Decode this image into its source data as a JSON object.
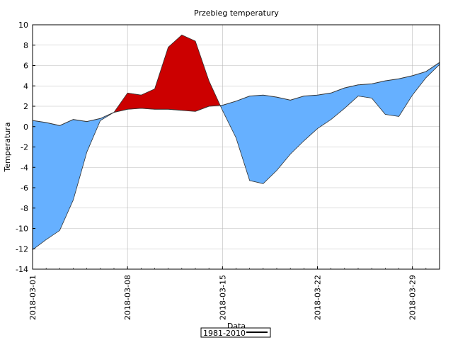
{
  "chart_data": {
    "type": "area",
    "title": "Przebieg temperatury",
    "xlabel": "Data",
    "ylabel": "Temperatura",
    "ylim": [
      -14,
      10
    ],
    "yticks": [
      -14,
      -12,
      -10,
      -8,
      -6,
      -4,
      -2,
      0,
      2,
      4,
      6,
      8,
      10
    ],
    "xticks": [
      "2018-03-01",
      "2018-03-08",
      "2018-03-15",
      "2018-03-22",
      "2018-03-29"
    ],
    "grid": true,
    "legend_position": "bottom-center",
    "colors": {
      "above": "#cc0000",
      "below": "#66b0ff",
      "line": "#000000",
      "grid": "#bbbbbb"
    },
    "x": [
      "2018-03-01",
      "2018-03-02",
      "2018-03-03",
      "2018-03-04",
      "2018-03-05",
      "2018-03-06",
      "2018-03-07",
      "2018-03-08",
      "2018-03-09",
      "2018-03-10",
      "2018-03-11",
      "2018-03-12",
      "2018-03-13",
      "2018-03-14",
      "2018-03-15",
      "2018-03-16",
      "2018-03-17",
      "2018-03-18",
      "2018-03-19",
      "2018-03-20",
      "2018-03-21",
      "2018-03-22",
      "2018-03-23",
      "2018-03-24",
      "2018-03-25",
      "2018-03-26",
      "2018-03-27",
      "2018-03-28",
      "2018-03-29",
      "2018-03-30",
      "2018-03-31"
    ],
    "series": [
      {
        "name": "",
        "values": [
          -12.1,
          -11.1,
          -10.2,
          -7.2,
          -2.5,
          0.6,
          1.4,
          3.3,
          3.1,
          3.7,
          7.8,
          9.0,
          8.4,
          4.5,
          1.6,
          -1.1,
          -5.3,
          -5.6,
          -4.3,
          -2.7,
          -1.4,
          -0.2,
          0.7,
          1.8,
          3.0,
          2.8,
          1.2,
          1.0,
          3.1,
          4.8,
          6.1
        ]
      },
      {
        "name": "1981-2010",
        "values": [
          0.6,
          0.4,
          0.1,
          0.7,
          0.5,
          0.8,
          1.4,
          1.7,
          1.8,
          1.7,
          1.7,
          1.6,
          1.5,
          2.0,
          2.1,
          2.5,
          3.0,
          3.1,
          2.9,
          2.6,
          3.0,
          3.1,
          3.3,
          3.8,
          4.1,
          4.2,
          4.5,
          4.7,
          5.0,
          5.4,
          6.3
        ]
      }
    ]
  }
}
